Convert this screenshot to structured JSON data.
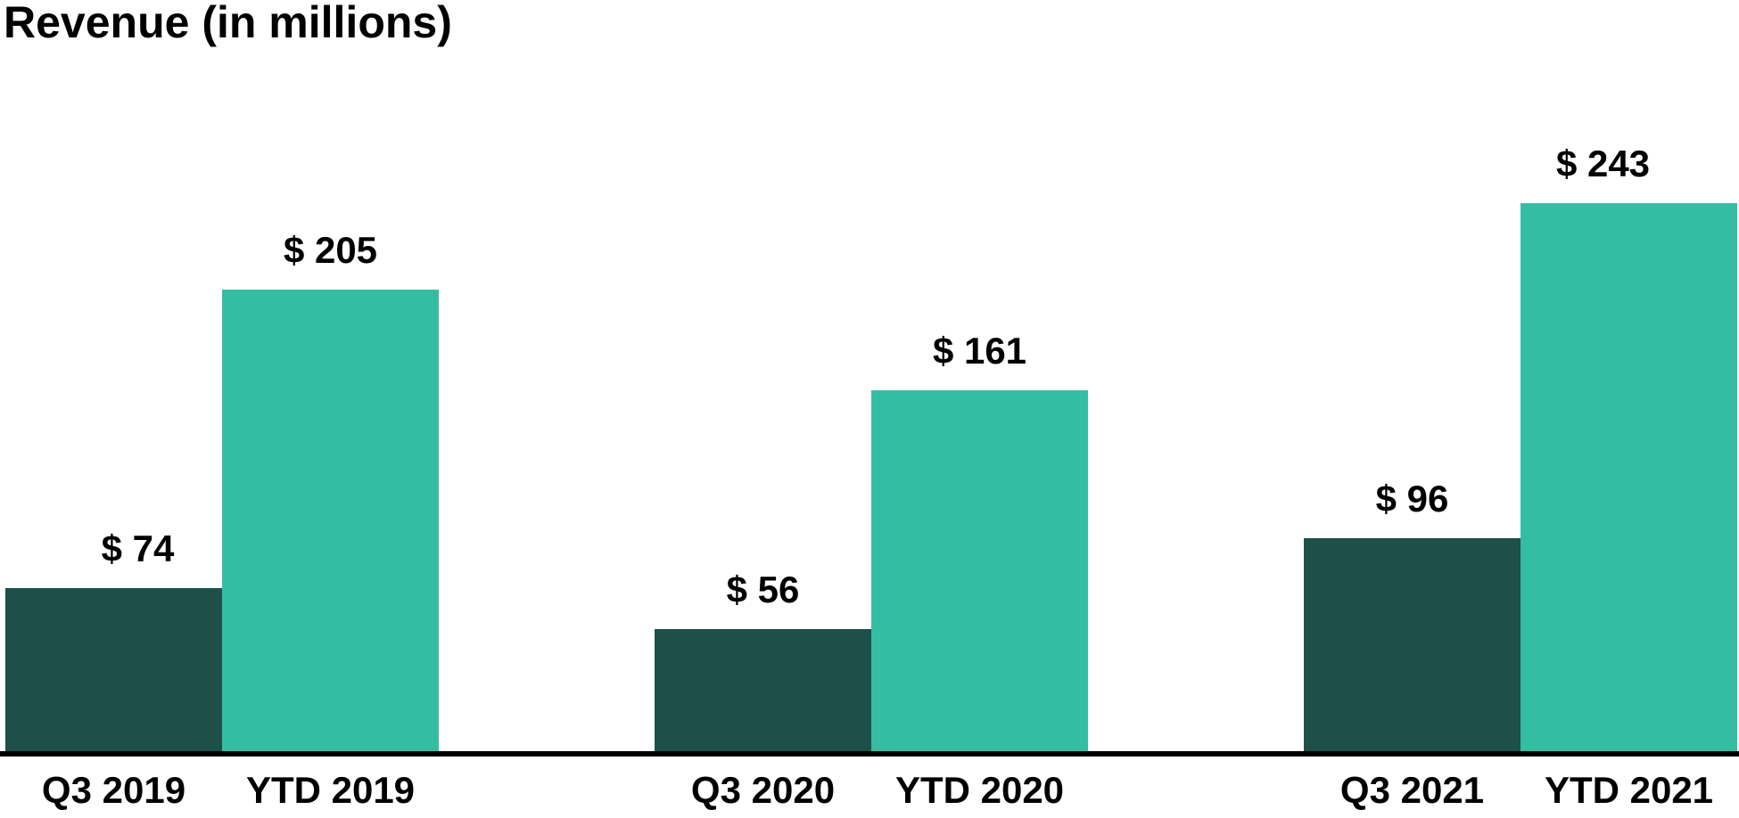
{
  "chart_data": {
    "type": "bar",
    "title": "Revenue (in millions)",
    "categories": [
      "Q3 2019",
      "YTD 2019",
      "Q3 2020",
      "YTD 2020",
      "Q3 2021",
      "YTD 2021"
    ],
    "values": [
      74,
      205,
      56,
      161,
      96,
      243
    ],
    "bars": [
      {
        "category": "Q3 2019",
        "value": 74,
        "label": "$ 74",
        "series": "Q3"
      },
      {
        "category": "YTD 2019",
        "value": 205,
        "label": "$ 205",
        "series": "YTD"
      },
      {
        "category": "Q3 2020",
        "value": 56,
        "label": "$ 56",
        "series": "Q3"
      },
      {
        "category": "YTD 2020",
        "value": 161,
        "label": "$ 161",
        "series": "YTD"
      },
      {
        "category": "Q3 2021",
        "value": 96,
        "label": "$ 96",
        "series": "Q3"
      },
      {
        "category": "YTD 2021",
        "value": 243,
        "label": "$ 243",
        "series": "YTD"
      }
    ],
    "series": [
      {
        "name": "Q3",
        "color": "#1d5049"
      },
      {
        "name": "YTD",
        "color": "#35bda4"
      }
    ],
    "groups": [
      [
        "Q3 2019",
        "YTD 2019"
      ],
      [
        "Q3 2020",
        "YTD 2020"
      ],
      [
        "Q3 2021",
        "YTD 2021"
      ]
    ],
    "value_label_format": "$ {value}",
    "xlabel": "",
    "ylabel": "",
    "ylim": [
      0,
      243
    ],
    "grid": false,
    "legend": "none",
    "axis_color": "#000000",
    "text_color": "#000000",
    "background_color": "#ffffff"
  }
}
